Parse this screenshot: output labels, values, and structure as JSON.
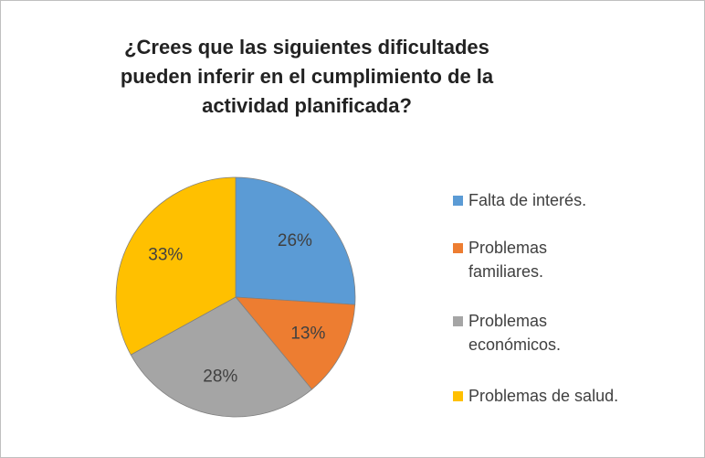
{
  "chart_data": {
    "type": "pie",
    "title": "¿Crees que las siguientes dificultades pueden inferir en el cumplimiento de la actividad planificada?",
    "categories": [
      "Falta de interés.",
      "Problemas familiares.",
      "Problemas económicos.",
      "Problemas de salud."
    ],
    "values": [
      26,
      13,
      28,
      33
    ],
    "value_labels": [
      "26%",
      "13%",
      "28%",
      "33%"
    ],
    "colors": [
      "#5b9bd5",
      "#ed7d31",
      "#a5a5a5",
      "#ffc000"
    ],
    "legend": "right"
  }
}
